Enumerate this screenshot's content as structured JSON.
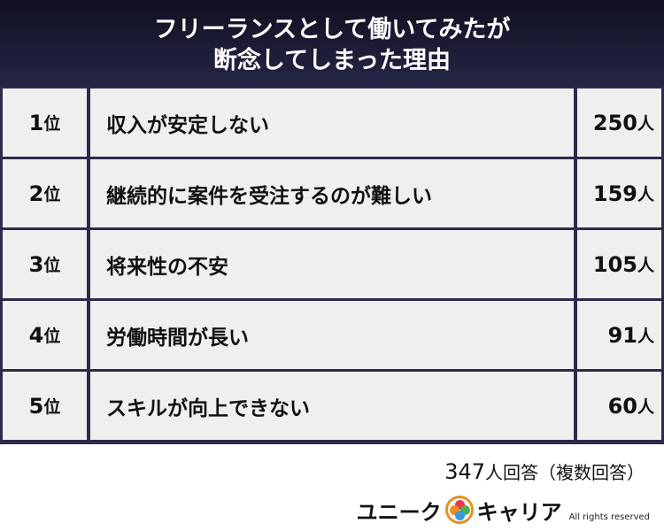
{
  "title": {
    "line1": "フリーランスとして働いてみたが",
    "line2": "断念してしまった理由"
  },
  "rows": [
    {
      "rank": "1",
      "rank_suffix": "位",
      "reason": "収入が安定しない",
      "count": "250",
      "unit": "人"
    },
    {
      "rank": "2",
      "rank_suffix": "位",
      "reason": "継続的に案件を受注するのが難しい",
      "count": "159",
      "unit": "人"
    },
    {
      "rank": "3",
      "rank_suffix": "位",
      "reason": "将来性の不安",
      "count": "105",
      "unit": "人"
    },
    {
      "rank": "4",
      "rank_suffix": "位",
      "reason": "労働時間が長い",
      "count": "91",
      "unit": "人"
    },
    {
      "rank": "5",
      "rank_suffix": "位",
      "reason": "スキルが向上できない",
      "count": "60",
      "unit": "人"
    }
  ],
  "footer": {
    "total": "347",
    "total_suffix": "人回答（複数回答）",
    "logo_left": "ユニーク",
    "logo_right": "キャリア",
    "rights": "All rights reserved"
  },
  "colors": {
    "header": "#1a1a35",
    "border": "#2d2b4a",
    "cell": "#efefef"
  }
}
